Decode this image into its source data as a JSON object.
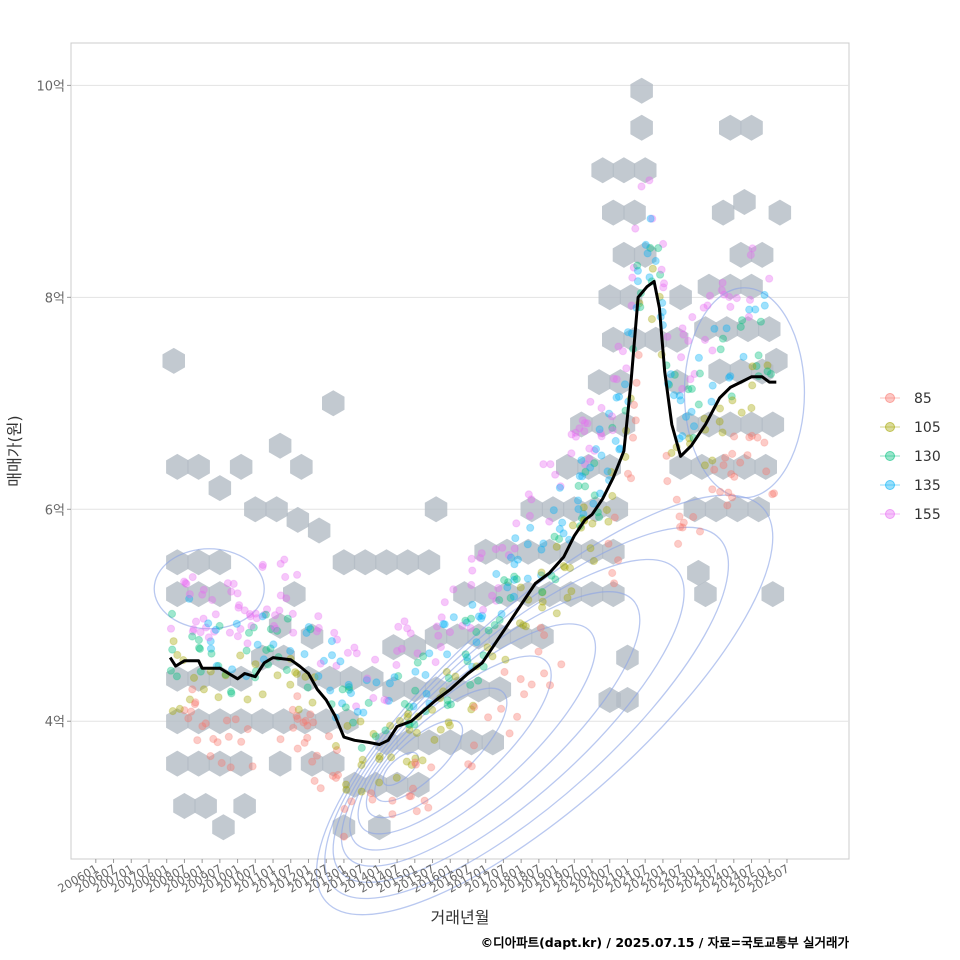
{
  "chart_data": {
    "type": "scatter",
    "xlabel": "거래년월",
    "ylabel": "매매가(원)",
    "caption": "©디아파트(dapt.kr) / 2025.07.15 / 자료=국토교통부 실거래가",
    "x_ticks": [
      "200601",
      "200607",
      "200701",
      "200707",
      "200801",
      "200807",
      "200901",
      "200907",
      "201001",
      "201007",
      "201101",
      "201107",
      "201201",
      "201207",
      "201301",
      "201307",
      "201401",
      "201407",
      "201501",
      "201507",
      "201601",
      "201607",
      "201701",
      "201707",
      "201801",
      "201807",
      "201901",
      "201907",
      "202001",
      "202007",
      "202101",
      "202107",
      "202201",
      "202207",
      "202301",
      "202307",
      "202401",
      "202407",
      "202501",
      "202507"
    ],
    "x_range": [
      2005.3,
      2027.25
    ],
    "y_ticks": [
      {
        "value": 4,
        "label": "4억"
      },
      {
        "value": 6,
        "label": "6억"
      },
      {
        "value": 8,
        "label": "8억"
      },
      {
        "value": 10,
        "label": "10억"
      }
    ],
    "y_range": [
      2.7,
      10.4
    ],
    "y_unit": "억 원",
    "legend": [
      {
        "name": "85",
        "color": "#F8766D"
      },
      {
        "name": "105",
        "color": "#A3A500"
      },
      {
        "name": "130",
        "color": "#00BF7D"
      },
      {
        "name": "135",
        "color": "#00B0F6"
      },
      {
        "name": "155",
        "color": "#E76BF3"
      }
    ],
    "median_line": [
      [
        2008.1,
        4.6
      ],
      [
        2008.25,
        4.52
      ],
      [
        2008.5,
        4.57
      ],
      [
        2008.9,
        4.57
      ],
      [
        2009.0,
        4.5
      ],
      [
        2009.5,
        4.5
      ],
      [
        2009.75,
        4.45
      ],
      [
        2010.0,
        4.4
      ],
      [
        2010.2,
        4.45
      ],
      [
        2010.5,
        4.42
      ],
      [
        2010.75,
        4.55
      ],
      [
        2011.0,
        4.6
      ],
      [
        2011.5,
        4.58
      ],
      [
        2011.75,
        4.52
      ],
      [
        2012.0,
        4.45
      ],
      [
        2012.25,
        4.3
      ],
      [
        2012.5,
        4.2
      ],
      [
        2012.75,
        4.05
      ],
      [
        2013.0,
        3.85
      ],
      [
        2013.3,
        3.82
      ],
      [
        2013.7,
        3.8
      ],
      [
        2014.0,
        3.78
      ],
      [
        2014.25,
        3.82
      ],
      [
        2014.5,
        3.95
      ],
      [
        2014.9,
        4.0
      ],
      [
        2015.25,
        4.1
      ],
      [
        2015.6,
        4.2
      ],
      [
        2016.0,
        4.3
      ],
      [
        2016.5,
        4.45
      ],
      [
        2016.9,
        4.55
      ],
      [
        2017.2,
        4.7
      ],
      [
        2017.6,
        4.9
      ],
      [
        2018.0,
        5.1
      ],
      [
        2018.4,
        5.3
      ],
      [
        2018.8,
        5.4
      ],
      [
        2019.2,
        5.55
      ],
      [
        2019.5,
        5.75
      ],
      [
        2019.8,
        5.9
      ],
      [
        2020.0,
        5.95
      ],
      [
        2020.3,
        6.1
      ],
      [
        2020.6,
        6.3
      ],
      [
        2020.9,
        6.55
      ],
      [
        2021.1,
        7.2
      ],
      [
        2021.3,
        8.0
      ],
      [
        2021.55,
        8.1
      ],
      [
        2021.75,
        8.15
      ],
      [
        2021.9,
        7.9
      ],
      [
        2022.05,
        7.3
      ],
      [
        2022.25,
        6.8
      ],
      [
        2022.5,
        6.5
      ],
      [
        2022.8,
        6.6
      ],
      [
        2023.2,
        6.8
      ],
      [
        2023.6,
        7.05
      ],
      [
        2023.9,
        7.15
      ],
      [
        2024.2,
        7.2
      ],
      [
        2024.5,
        7.25
      ],
      [
        2024.8,
        7.25
      ],
      [
        2025.0,
        7.2
      ],
      [
        2025.2,
        7.2
      ]
    ],
    "hexbin_centers": [
      [
        2008.5,
        3.2
      ],
      [
        2009.1,
        3.2
      ],
      [
        2009.6,
        3.0
      ],
      [
        2010.2,
        3.2
      ],
      [
        2013.0,
        3.0
      ],
      [
        2014.0,
        3.0
      ],
      [
        2008.3,
        3.6
      ],
      [
        2008.9,
        3.6
      ],
      [
        2009.5,
        3.6
      ],
      [
        2010.1,
        3.6
      ],
      [
        2011.2,
        3.6
      ],
      [
        2012.1,
        3.6
      ],
      [
        2012.7,
        3.6
      ],
      [
        2013.3,
        3.4
      ],
      [
        2013.9,
        3.4
      ],
      [
        2014.5,
        3.4
      ],
      [
        2015.1,
        3.4
      ],
      [
        2008.3,
        4.0
      ],
      [
        2008.9,
        4.0
      ],
      [
        2009.5,
        4.0
      ],
      [
        2010.1,
        4.0
      ],
      [
        2010.7,
        4.0
      ],
      [
        2011.3,
        4.0
      ],
      [
        2011.9,
        4.0
      ],
      [
        2012.5,
        4.0
      ],
      [
        2013.1,
        4.0
      ],
      [
        2014.2,
        3.8
      ],
      [
        2014.8,
        3.8
      ],
      [
        2015.4,
        3.8
      ],
      [
        2016.0,
        3.8
      ],
      [
        2016.6,
        3.8
      ],
      [
        2017.2,
        3.8
      ],
      [
        2008.3,
        4.4
      ],
      [
        2008.9,
        4.4
      ],
      [
        2009.5,
        4.4
      ],
      [
        2010.1,
        4.4
      ],
      [
        2010.7,
        4.6
      ],
      [
        2011.3,
        4.6
      ],
      [
        2012.0,
        4.4
      ],
      [
        2012.6,
        4.4
      ],
      [
        2013.2,
        4.4
      ],
      [
        2013.8,
        4.4
      ],
      [
        2014.4,
        4.3
      ],
      [
        2015.0,
        4.3
      ],
      [
        2015.6,
        4.3
      ],
      [
        2016.2,
        4.3
      ],
      [
        2016.8,
        4.3
      ],
      [
        2017.4,
        4.3
      ],
      [
        2012.1,
        4.8
      ],
      [
        2014.4,
        4.7
      ],
      [
        2015.0,
        4.7
      ],
      [
        2015.6,
        4.8
      ],
      [
        2016.2,
        4.8
      ],
      [
        2016.8,
        4.8
      ],
      [
        2017.4,
        4.8
      ],
      [
        2018.0,
        4.8
      ],
      [
        2018.6,
        4.8
      ],
      [
        2011.2,
        4.9
      ],
      [
        2008.3,
        5.2
      ],
      [
        2008.9,
        5.2
      ],
      [
        2009.5,
        5.2
      ],
      [
        2011.6,
        5.2
      ],
      [
        2016.4,
        5.2
      ],
      [
        2017.0,
        5.2
      ],
      [
        2017.6,
        5.2
      ],
      [
        2018.2,
        5.2
      ],
      [
        2018.8,
        5.2
      ],
      [
        2019.4,
        5.2
      ],
      [
        2020.0,
        5.2
      ],
      [
        2020.6,
        5.2
      ],
      [
        2008.3,
        5.5
      ],
      [
        2008.9,
        5.5
      ],
      [
        2009.5,
        5.5
      ],
      [
        2013.0,
        5.5
      ],
      [
        2013.6,
        5.5
      ],
      [
        2014.2,
        5.5
      ],
      [
        2014.8,
        5.5
      ],
      [
        2015.4,
        5.5
      ],
      [
        2017.0,
        5.6
      ],
      [
        2017.6,
        5.6
      ],
      [
        2018.2,
        5.6
      ],
      [
        2018.8,
        5.6
      ],
      [
        2019.4,
        5.6
      ],
      [
        2020.0,
        5.6
      ],
      [
        2020.6,
        5.6
      ],
      [
        2010.5,
        6.0
      ],
      [
        2011.1,
        6.0
      ],
      [
        2011.7,
        5.9
      ],
      [
        2012.3,
        5.8
      ],
      [
        2015.6,
        6.0
      ],
      [
        2018.3,
        6.0
      ],
      [
        2018.9,
        6.0
      ],
      [
        2019.5,
        6.0
      ],
      [
        2020.1,
        6.0
      ],
      [
        2020.7,
        6.0
      ],
      [
        2022.9,
        6.0
      ],
      [
        2023.5,
        6.0
      ],
      [
        2024.1,
        6.0
      ],
      [
        2024.7,
        6.0
      ],
      [
        2008.3,
        6.4
      ],
      [
        2008.9,
        6.4
      ],
      [
        2009.5,
        6.2
      ],
      [
        2010.1,
        6.4
      ],
      [
        2011.2,
        6.6
      ],
      [
        2011.8,
        6.4
      ],
      [
        2019.3,
        6.4
      ],
      [
        2019.9,
        6.4
      ],
      [
        2020.5,
        6.4
      ],
      [
        2022.5,
        6.4
      ],
      [
        2023.1,
        6.4
      ],
      [
        2023.7,
        6.4
      ],
      [
        2024.3,
        6.4
      ],
      [
        2024.9,
        6.4
      ],
      [
        2008.2,
        7.4
      ],
      [
        2012.7,
        7.0
      ],
      [
        2019.7,
        6.8
      ],
      [
        2020.3,
        6.8
      ],
      [
        2020.9,
        6.8
      ],
      [
        2022.7,
        6.8
      ],
      [
        2023.3,
        6.8
      ],
      [
        2023.9,
        6.8
      ],
      [
        2024.5,
        6.8
      ],
      [
        2025.1,
        6.8
      ],
      [
        2020.2,
        7.2
      ],
      [
        2020.8,
        7.2
      ],
      [
        2022.4,
        7.2
      ],
      [
        2023.6,
        7.3
      ],
      [
        2024.2,
        7.3
      ],
      [
        2024.8,
        7.3
      ],
      [
        2025.2,
        7.4
      ],
      [
        2020.6,
        7.6
      ],
      [
        2021.2,
        7.6
      ],
      [
        2021.8,
        7.6
      ],
      [
        2022.4,
        7.6
      ],
      [
        2023.2,
        7.7
      ],
      [
        2023.8,
        7.7
      ],
      [
        2024.4,
        7.7
      ],
      [
        2025.0,
        7.7
      ],
      [
        2020.5,
        8.0
      ],
      [
        2021.1,
        8.0
      ],
      [
        2022.5,
        8.0
      ],
      [
        2023.3,
        8.1
      ],
      [
        2023.9,
        8.1
      ],
      [
        2024.5,
        8.1
      ],
      [
        2024.2,
        8.4
      ],
      [
        2020.9,
        8.4
      ],
      [
        2021.5,
        8.4
      ],
      [
        2024.8,
        8.4
      ],
      [
        2021.2,
        8.8
      ],
      [
        2020.6,
        8.8
      ],
      [
        2023.7,
        8.8
      ],
      [
        2024.3,
        8.9
      ],
      [
        2025.3,
        8.8
      ],
      [
        2020.3,
        9.2
      ],
      [
        2020.9,
        9.2
      ],
      [
        2021.5,
        9.2
      ],
      [
        2021.4,
        9.6
      ],
      [
        2023.9,
        9.6
      ],
      [
        2024.5,
        9.6
      ],
      [
        2021.4,
        9.95
      ],
      [
        2025.1,
        5.2
      ],
      [
        2023.2,
        5.2
      ],
      [
        2023.0,
        5.4
      ],
      [
        2021.0,
        4.2
      ],
      [
        2020.5,
        4.2
      ],
      [
        2021.0,
        4.6
      ]
    ],
    "contour_levels": 9
  }
}
